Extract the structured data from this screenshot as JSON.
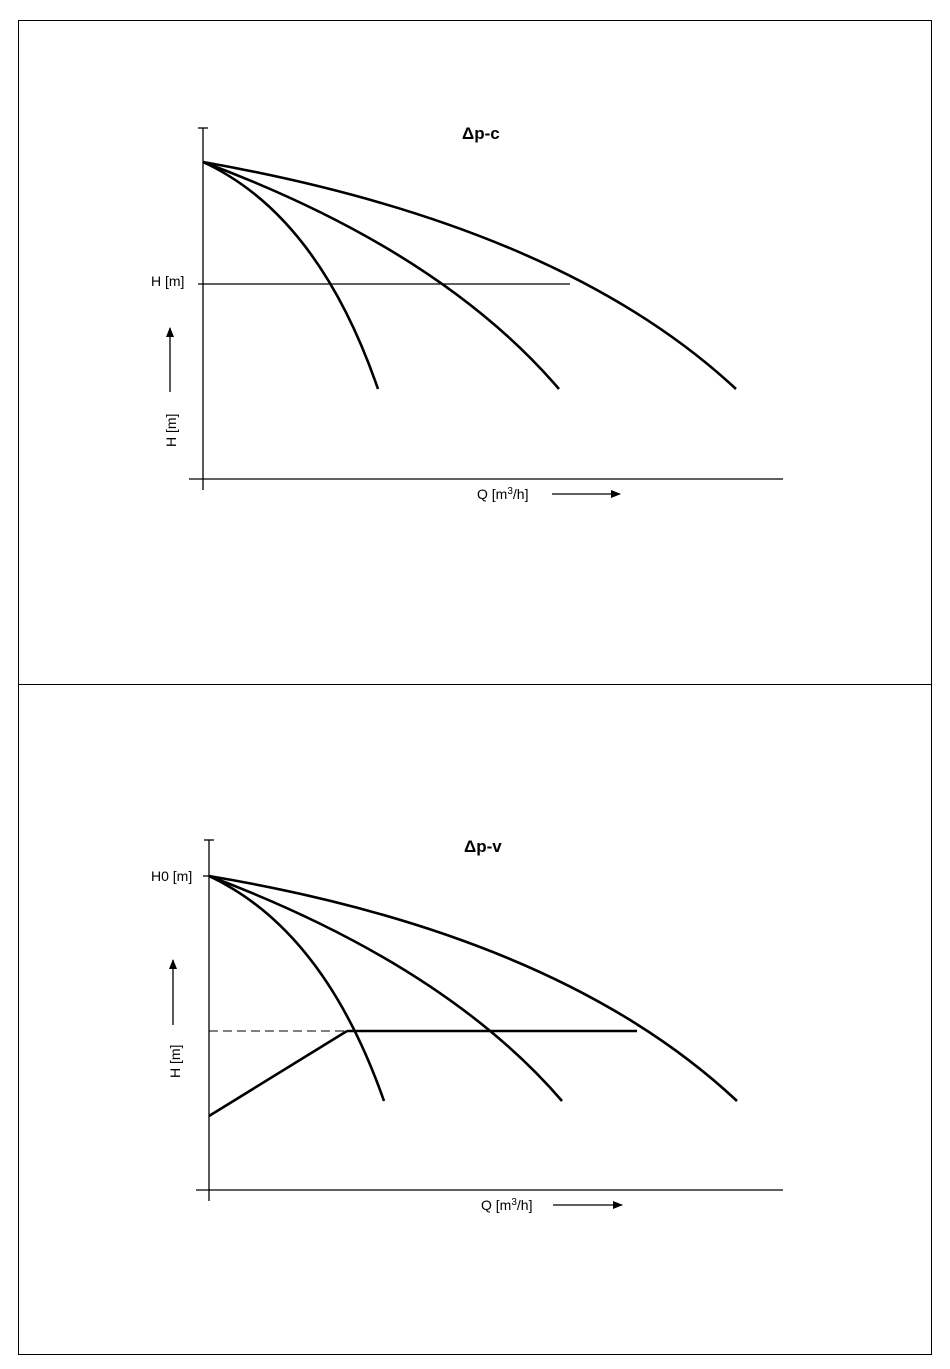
{
  "panels": [
    {
      "title": "Δp-c",
      "y_axis_label": "H [m]",
      "x_axis_label_base": "Q [m",
      "x_axis_label_sup": "3",
      "x_axis_label_tail": "/h]",
      "setpoint_label": "H [m]"
    },
    {
      "title": "Δp-v",
      "y_axis_label": "H [m]",
      "x_axis_label_base": "Q [m",
      "x_axis_label_sup": "3",
      "x_axis_label_tail": "/h]",
      "setpoint_label": "H0 [m]"
    }
  ]
}
